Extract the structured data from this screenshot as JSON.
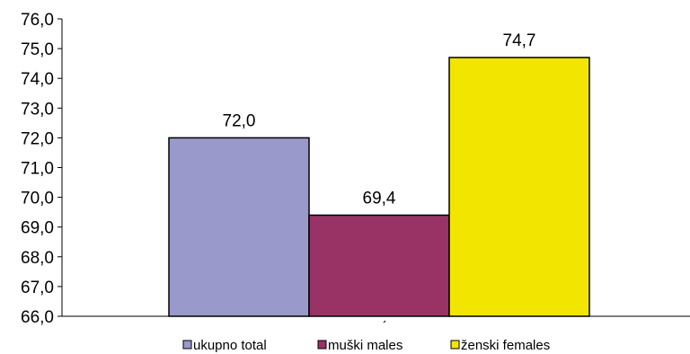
{
  "chart_data": {
    "type": "bar",
    "categories": [
      "ukupno  total",
      "muški males",
      "ženski females"
    ],
    "values": [
      72.0,
      69.4,
      74.7
    ],
    "value_labels": [
      "72,0",
      "69,4",
      "74,7"
    ],
    "colors": [
      "#9999cc",
      "#993366",
      "#f2e600"
    ],
    "ylim": [
      66.0,
      76.0
    ],
    "yticks": [
      66.0,
      67.0,
      68.0,
      69.0,
      70.0,
      71.0,
      72.0,
      73.0,
      74.0,
      75.0,
      76.0
    ],
    "ytick_labels": [
      "66,0",
      "67,0",
      "68,0",
      "69,0",
      "70,0",
      "71,0",
      "72,0",
      "73,0",
      "74,0",
      "75,0",
      "76,0"
    ],
    "grid": false,
    "legend": {
      "placement": "bottom",
      "entries": [
        "ukupno  total",
        "muški males",
        "ženski females"
      ]
    }
  }
}
